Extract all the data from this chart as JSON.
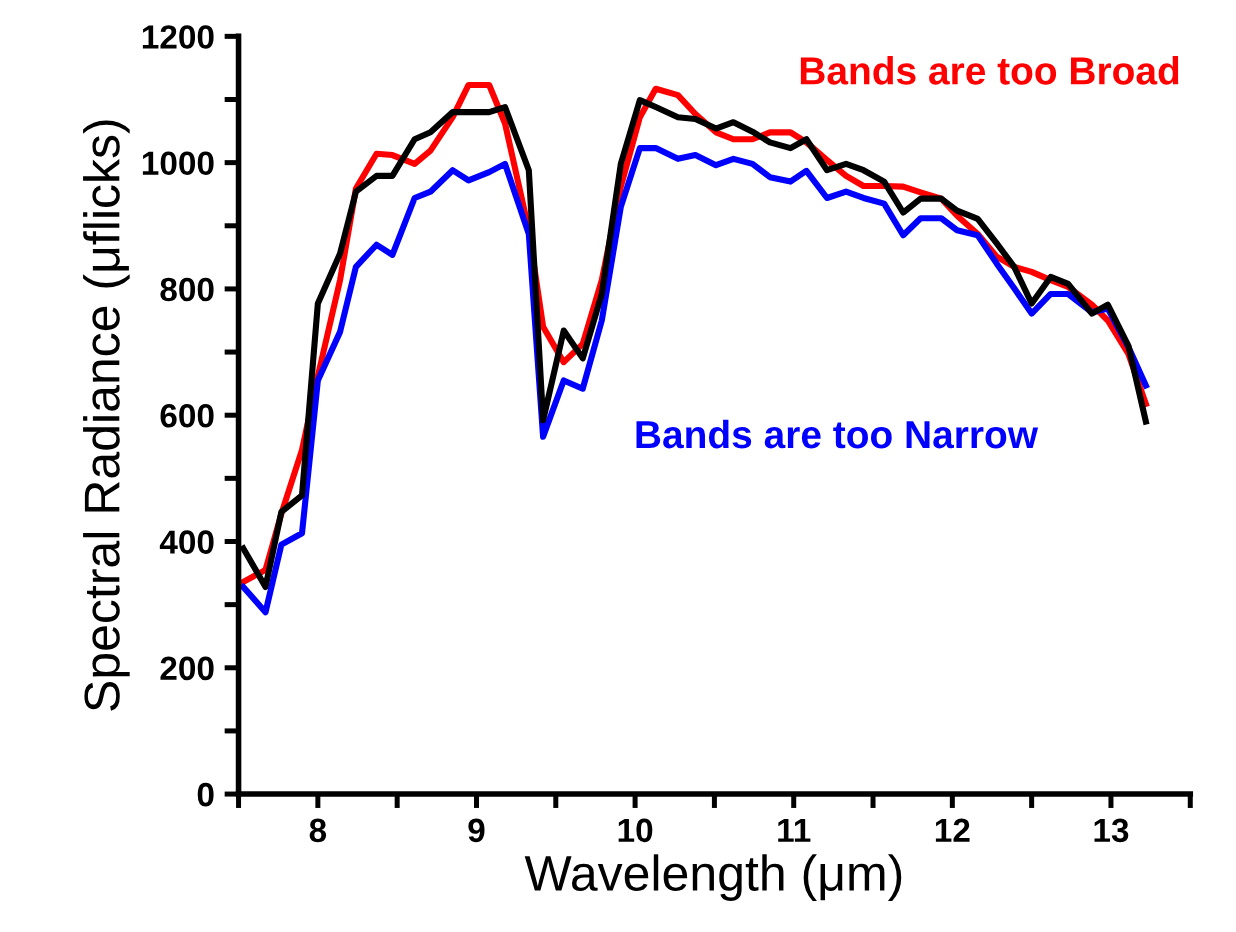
{
  "chart_data": {
    "type": "line",
    "xlabel": "Wavelength (μm)",
    "ylabel": "Spectral Radiance (μflicks)",
    "x": [
      7.53,
      7.67,
      7.77,
      7.9,
      8.0,
      8.14,
      8.24,
      8.37,
      8.47,
      8.61,
      8.71,
      8.85,
      8.95,
      9.08,
      9.18,
      9.33,
      9.42,
      9.55,
      9.67,
      9.79,
      9.91,
      10.03,
      10.13,
      10.27,
      10.38,
      10.51,
      10.62,
      10.74,
      10.85,
      10.98,
      11.08,
      11.21,
      11.33,
      11.44,
      11.57,
      11.69,
      11.8,
      11.93,
      12.03,
      12.16,
      12.28,
      12.39,
      12.5,
      12.62,
      12.73,
      12.88,
      12.98,
      13.11,
      13.22
    ],
    "series": [
      {
        "name": "Bands are too Broad",
        "color": "#ff0000",
        "values": [
          336,
          355,
          444,
          545,
          662,
          814,
          959,
          1014,
          1012,
          998,
          1019,
          1072,
          1123,
          1123,
          1062,
          893,
          740,
          684,
          713,
          814,
          962,
          1072,
          1117,
          1107,
          1077,
          1048,
          1037,
          1037,
          1048,
          1048,
          1032,
          1004,
          979,
          963,
          963,
          962,
          953,
          943,
          916,
          887,
          851,
          835,
          827,
          814,
          803,
          775,
          750,
          697,
          618
        ]
      },
      {
        "name": "Bands are too Narrow",
        "color": "#0000ff",
        "values": [
          328,
          288,
          395,
          413,
          655,
          732,
          835,
          870,
          854,
          944,
          954,
          988,
          972,
          985,
          998,
          887,
          566,
          655,
          642,
          750,
          930,
          1023,
          1023,
          1006,
          1012,
          996,
          1006,
          998,
          977,
          970,
          987,
          944,
          954,
          944,
          935,
          885,
          912,
          912,
          893,
          885,
          840,
          801,
          761,
          792,
          792,
          763,
          769,
          708,
          647
        ]
      },
      {
        "color": "#000000",
        "values": [
          389,
          328,
          447,
          473,
          777,
          856,
          954,
          979,
          979,
          1037,
          1048,
          1080,
          1080,
          1080,
          1088,
          988,
          592,
          734,
          690,
          792,
          998,
          1099,
          1088,
          1072,
          1069,
          1054,
          1064,
          1049,
          1032,
          1023,
          1037,
          988,
          998,
          988,
          970,
          921,
          943,
          943,
          924,
          911,
          872,
          835,
          777,
          819,
          808,
          761,
          775,
          710,
          590
        ]
      }
    ],
    "xlim": [
      7.5,
      13.5
    ],
    "xticks": [
      {
        "value": 7.5,
        "label": null
      },
      8,
      {
        "value": 8.5,
        "label": null
      },
      9,
      {
        "value": 9.5,
        "label": null
      },
      10,
      {
        "value": 10.5,
        "label": null
      },
      11,
      {
        "value": 11.5,
        "label": null
      },
      12,
      {
        "value": 12.5,
        "label": null
      },
      13,
      {
        "value": 13.5,
        "label": null
      }
    ],
    "ylim": [
      0,
      1200
    ],
    "yticks": [
      0,
      {
        "value": 100,
        "label": null
      },
      200,
      {
        "value": 300,
        "label": null
      },
      400,
      {
        "value": 500,
        "label": null
      },
      600,
      {
        "value": 700,
        "label": null
      },
      800,
      {
        "value": 900,
        "label": null
      },
      1000,
      {
        "value": 1100,
        "label": null
      },
      1200
    ],
    "grid": false,
    "legend": false,
    "marker": "none",
    "line_style": "solid"
  }
}
